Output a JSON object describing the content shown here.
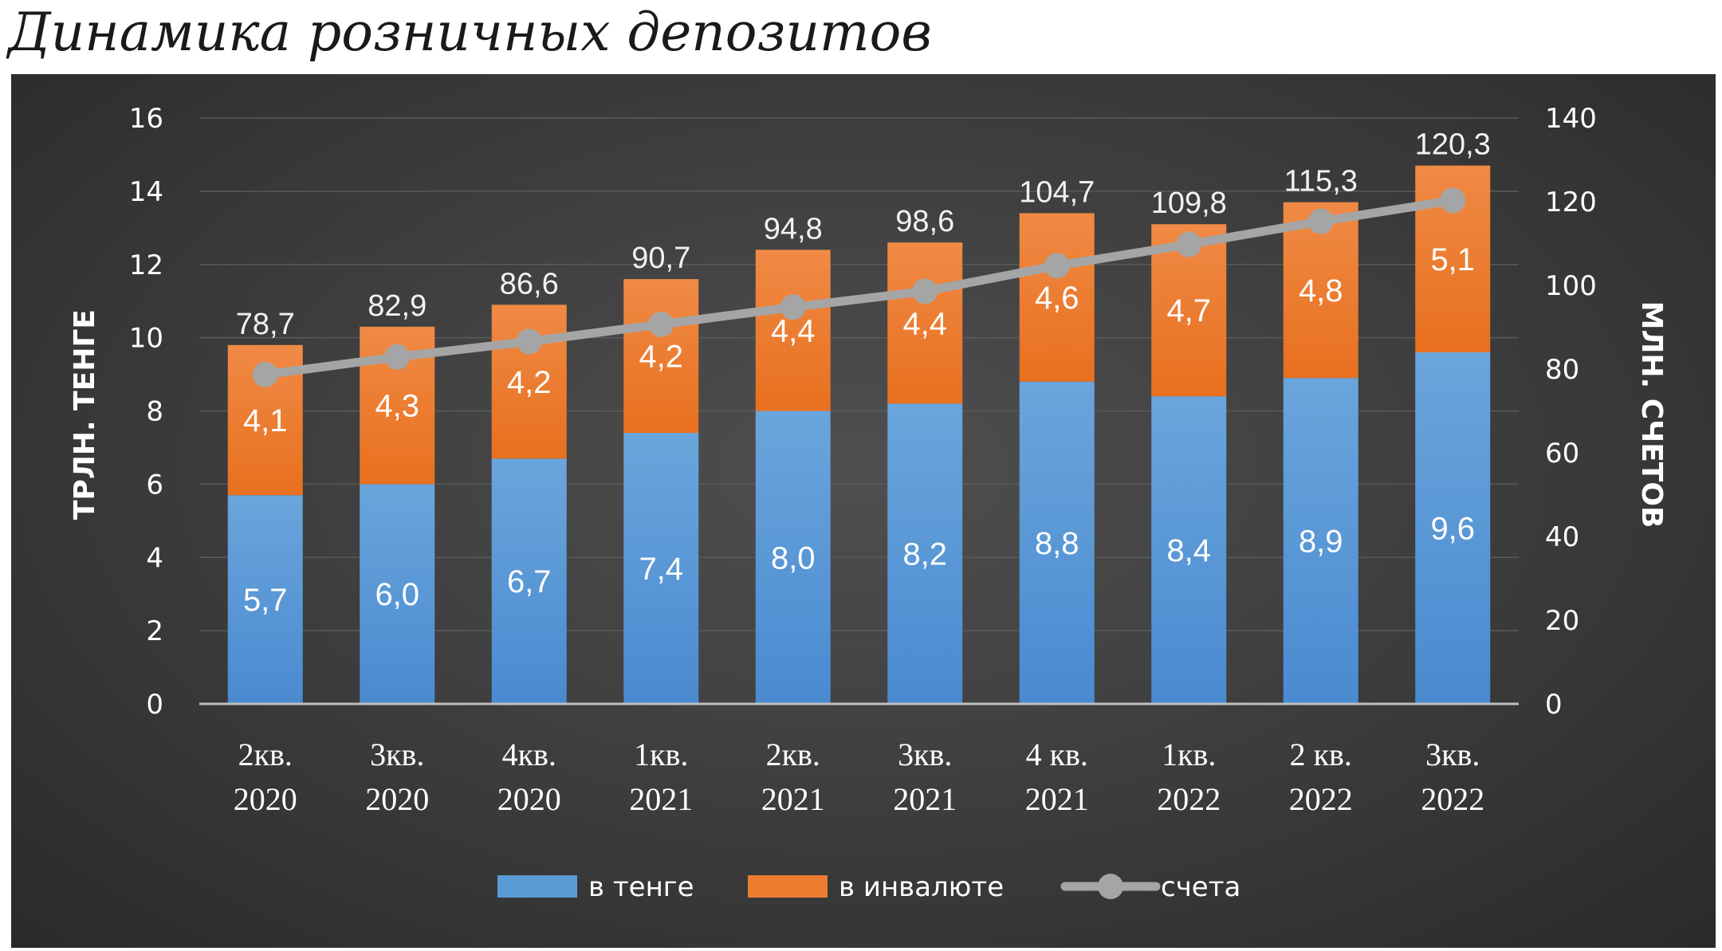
{
  "title": "Динамика розничных депозитов",
  "chart_data": {
    "type": "bar",
    "stacked": true,
    "categories": [
      [
        "2кв.",
        "2020"
      ],
      [
        "3кв.",
        "2020"
      ],
      [
        "4кв.",
        "2020"
      ],
      [
        "1кв.",
        "2021"
      ],
      [
        "2кв.",
        "2021"
      ],
      [
        "3кв.",
        "2021"
      ],
      [
        "4 кв.",
        "2021"
      ],
      [
        "1кв.",
        "2022"
      ],
      [
        "2 кв.",
        "2022"
      ],
      [
        "3кв.",
        "2022"
      ]
    ],
    "series": [
      {
        "name": "в тенге",
        "type": "bar",
        "axis": "left",
        "color": "#5b9bd5",
        "values": [
          5.7,
          6.0,
          6.7,
          7.4,
          8.0,
          8.2,
          8.8,
          8.4,
          8.9,
          9.6
        ],
        "labels": [
          "5,7",
          "6,0",
          "6,7",
          "7,4",
          "8,0",
          "8,2",
          "8,8",
          "8,4",
          "8,9",
          "9,6"
        ]
      },
      {
        "name": "в инвалюте",
        "type": "bar",
        "axis": "left",
        "color": "#ed7d31",
        "values": [
          4.1,
          4.3,
          4.2,
          4.2,
          4.4,
          4.4,
          4.6,
          4.7,
          4.8,
          5.1
        ],
        "labels": [
          "4,1",
          "4,3",
          "4,2",
          "4,2",
          "4,4",
          "4,4",
          "4,6",
          "4,7",
          "4,8",
          "5,1"
        ]
      },
      {
        "name": "счета",
        "type": "line",
        "axis": "right",
        "color": "#a5a5a5",
        "values": [
          78.7,
          82.9,
          86.6,
          90.7,
          94.8,
          98.6,
          104.7,
          109.8,
          115.3,
          120.3
        ],
        "labels": [
          "78,7",
          "82,9",
          "86,6",
          "90,7",
          "94,8",
          "98,6",
          "104,7",
          "109,8",
          "115,3",
          "120,3"
        ]
      }
    ],
    "ylabel": "ТРЛН. ТЕНГЕ",
    "ylim": [
      0,
      16
    ],
    "yticks": [
      "0",
      "2",
      "4",
      "6",
      "8",
      "10",
      "12",
      "14",
      "16"
    ],
    "y2label": "МЛН. СЧЕТОВ",
    "y2lim": [
      0,
      140
    ],
    "y2ticks": [
      "0",
      "20",
      "40",
      "60",
      "80",
      "100",
      "120",
      "140"
    ],
    "grid": true,
    "legend_position": "bottom",
    "colors": {
      "background": "#404040",
      "text": "#ffffff",
      "gridline": "#5a5a5a",
      "axis_line": "#bfbfbf"
    }
  }
}
